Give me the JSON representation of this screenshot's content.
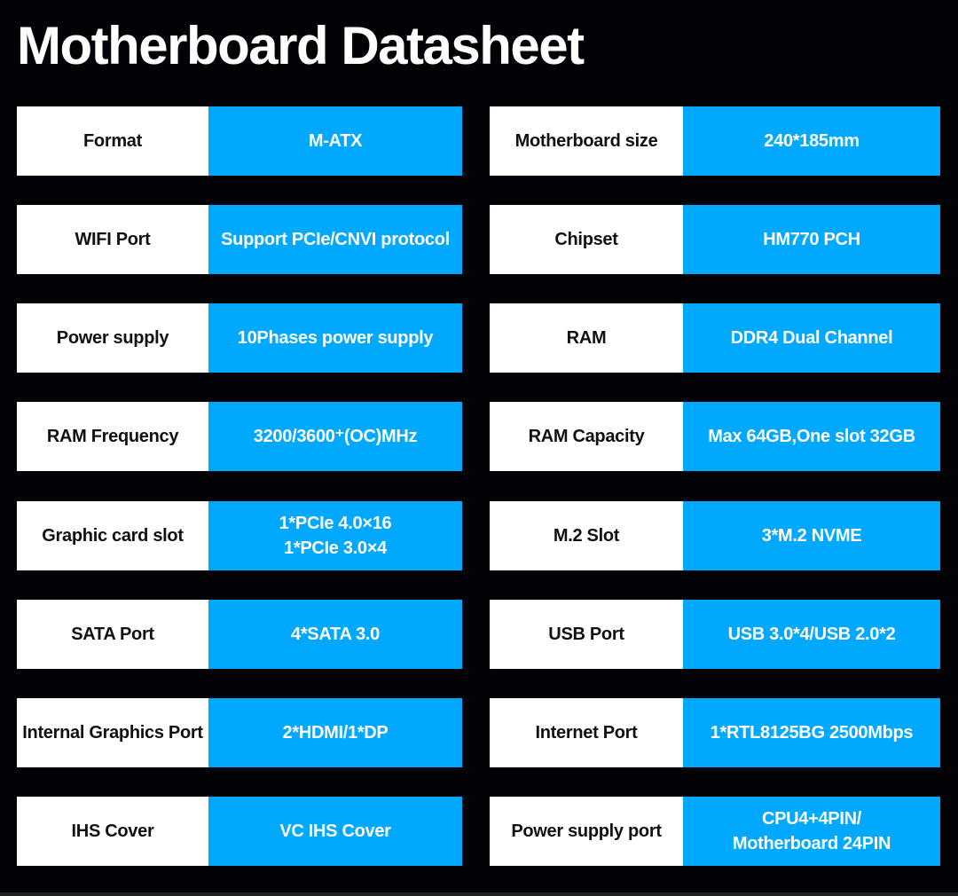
{
  "title": "Motherboard Datasheet",
  "colors": {
    "background": "#030307",
    "label_bg": "#ffffff",
    "value_bg": "#00a9fd"
  },
  "rows": [
    {
      "left": {
        "label": "Format",
        "value": "M-ATX"
      },
      "right": {
        "label": "Motherboard size",
        "value": "240*185mm"
      }
    },
    {
      "left": {
        "label": "WIFI Port",
        "value": "Support PCIe/CNVI protocol"
      },
      "right": {
        "label": "Chipset",
        "value": "HM770 PCH"
      }
    },
    {
      "left": {
        "label": "Power supply",
        "value": "10Phases power supply"
      },
      "right": {
        "label": "RAM",
        "value": "DDR4 Dual Channel"
      }
    },
    {
      "left": {
        "label": "RAM Frequency",
        "value": "3200/3600⁺(OC)MHz"
      },
      "right": {
        "label": "RAM Capacity",
        "value": "Max 64GB,One slot 32GB"
      }
    },
    {
      "left": {
        "label": "Graphic card slot",
        "value": "1*PCIe 4.0×16\n1*PCIe 3.0×4"
      },
      "right": {
        "label": "M.2 Slot",
        "value": "3*M.2 NVME"
      }
    },
    {
      "left": {
        "label": "SATA Port",
        "value": "4*SATA 3.0"
      },
      "right": {
        "label": "USB Port",
        "value": "USB 3.0*4/USB 2.0*2"
      }
    },
    {
      "left": {
        "label": "Internal Graphics Port",
        "value": "2*HDMI/1*DP"
      },
      "right": {
        "label": "Internet Port",
        "value": "1*RTL8125BG 2500Mbps"
      }
    },
    {
      "left": {
        "label": "IHS Cover",
        "value": "VC IHS Cover"
      },
      "right": {
        "label": "Power supply port",
        "value": "CPU4+4PIN/\nMotherboard 24PIN"
      }
    }
  ]
}
